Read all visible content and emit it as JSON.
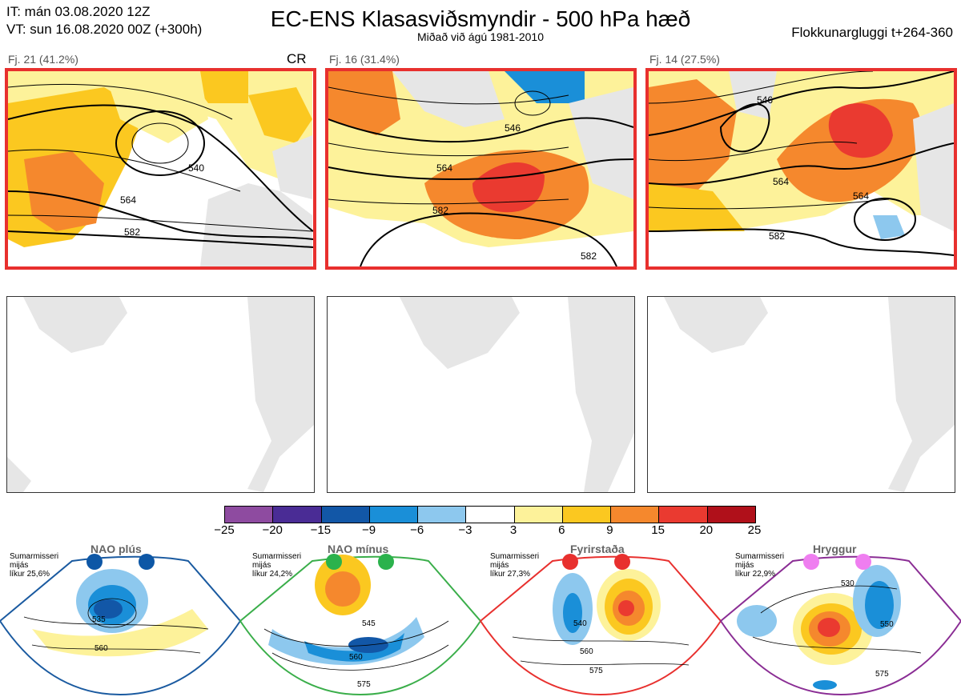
{
  "header": {
    "it_line": "IT: mán 03.08.2020 12Z",
    "vt_line": "VT: sun 16.08.2020 00Z  (+300h)",
    "title": "EC-ENS Klasasviðsmyndir - 500 hPa hæð",
    "subtitle": "Miðað við ágú 1981-2010",
    "window": "Flokkunargluggi t+264-360"
  },
  "clusters": [
    {
      "label": "Fj. 21 (41.2%)",
      "tag": "CR",
      "contours": [
        "540",
        "564",
        "582"
      ]
    },
    {
      "label": "Fj. 16 (31.4%)",
      "tag": "",
      "contours": [
        "546",
        "564",
        "582",
        "582"
      ]
    },
    {
      "label": "Fj. 14 (27.5%)",
      "tag": "",
      "contours": [
        "546",
        "564",
        "564",
        "582"
      ]
    }
  ],
  "colorbar": {
    "colors": [
      "#8e4ba0",
      "#4a2c95",
      "#1257a7",
      "#1a8fd8",
      "#8dc8ee",
      "#ffffff",
      "#fdf29a",
      "#fbc820",
      "#f5882d",
      "#ea3a30",
      "#b0101a"
    ],
    "ticks": [
      "−25",
      "−20",
      "−15",
      "−9",
      "−6",
      "−3",
      "3",
      "6",
      "9",
      "15",
      "20",
      "25"
    ]
  },
  "regimes": [
    {
      "name": "NAO plús",
      "season": "Sumarmisseri",
      "avg": "mijás",
      "prob": "líkur 25,6%",
      "dot_color": "#0d57a6",
      "frame_color": "#1a5aa0",
      "contours": [
        "535",
        "560"
      ]
    },
    {
      "name": "NAO mínus",
      "season": "Sumarmisseri",
      "avg": "mijás",
      "prob": "líkur 24,2%",
      "dot_color": "#2bb24c",
      "frame_color": "#3aae4a",
      "contours": [
        "545",
        "560",
        "575"
      ]
    },
    {
      "name": "Fyrirstaða",
      "season": "Sumarmisseri",
      "avg": "mijás",
      "prob": "líkur 27,3%",
      "dot_color": "#e8302e",
      "frame_color": "#e8302e",
      "contours": [
        "540",
        "560",
        "575"
      ]
    },
    {
      "name": "Hryggur",
      "season": "Sumarmisseri",
      "avg": "mijás",
      "prob": "líkur 22,9%",
      "dot_color": "#ef7ef0",
      "frame_color": "#8a2d94",
      "contours": [
        "530",
        "550",
        "575"
      ]
    }
  ]
}
